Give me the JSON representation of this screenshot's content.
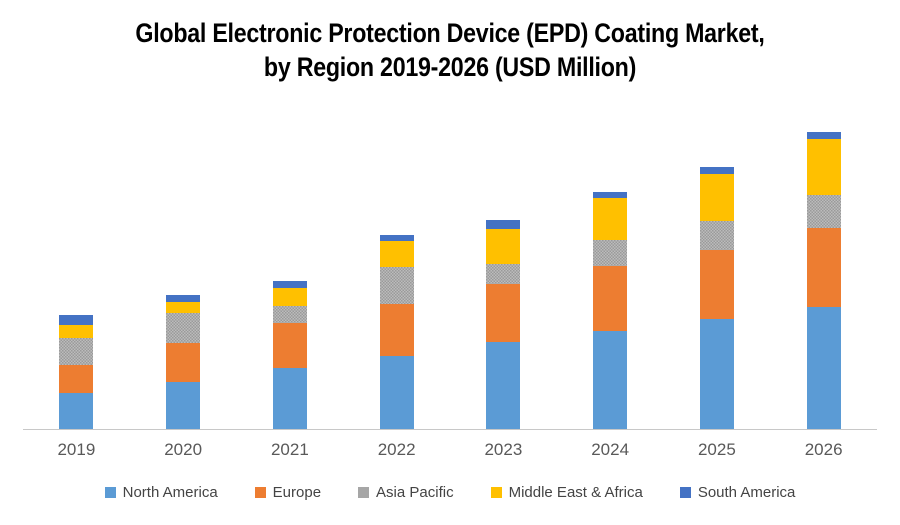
{
  "title": {
    "line1": "Global Electronic Protection Device (EPD) Coating Market,",
    "line2": "by Region 2019-2026 (USD Million)"
  },
  "chart_data": {
    "type": "bar",
    "stacked": true,
    "title": "Global Electronic Protection Device (EPD) Coating Market, by Region 2019-2026 (USD Million)",
    "value_unit_label": "USD Million",
    "categories": [
      "2019",
      "2020",
      "2021",
      "2022",
      "2023",
      "2024",
      "2025",
      "2026"
    ],
    "series": [
      {
        "name": "North America",
        "color": "#5B9BD5",
        "textured": false,
        "values": [
          36,
          47,
          61,
          73,
          87,
          98,
          110,
          122
        ]
      },
      {
        "name": "Europe",
        "color": "#ED7D31",
        "textured": false,
        "values": [
          28,
          39,
          45,
          52,
          58,
          65,
          69,
          79
        ]
      },
      {
        "name": "Asia Pacific",
        "color": "#A6A6A6",
        "textured": true,
        "values": [
          27,
          30,
          17,
          37,
          20,
          26,
          29,
          33
        ]
      },
      {
        "name": "Middle East & Africa",
        "color": "#FFC000",
        "textured": false,
        "values": [
          13,
          11,
          18,
          26,
          35,
          42,
          47,
          56
        ]
      },
      {
        "name": "South America",
        "color": "#4472C4",
        "textured": false,
        "values": [
          10,
          7,
          7,
          6,
          9,
          6,
          7,
          7
        ]
      }
    ],
    "totals": [
      114,
      134,
      148,
      194,
      209,
      237,
      262,
      297
    ],
    "xlabel": "",
    "ylabel": "",
    "ylim": [
      0,
      320
    ],
    "y_axis_shown": false,
    "grid": false,
    "legend_position": "bottom",
    "axis_line_color": "#C8C8C8",
    "tick_label_color": "#595959",
    "legend_text_color": "#444444",
    "title_color": "#000000",
    "background_color": "#FFFFFF"
  }
}
